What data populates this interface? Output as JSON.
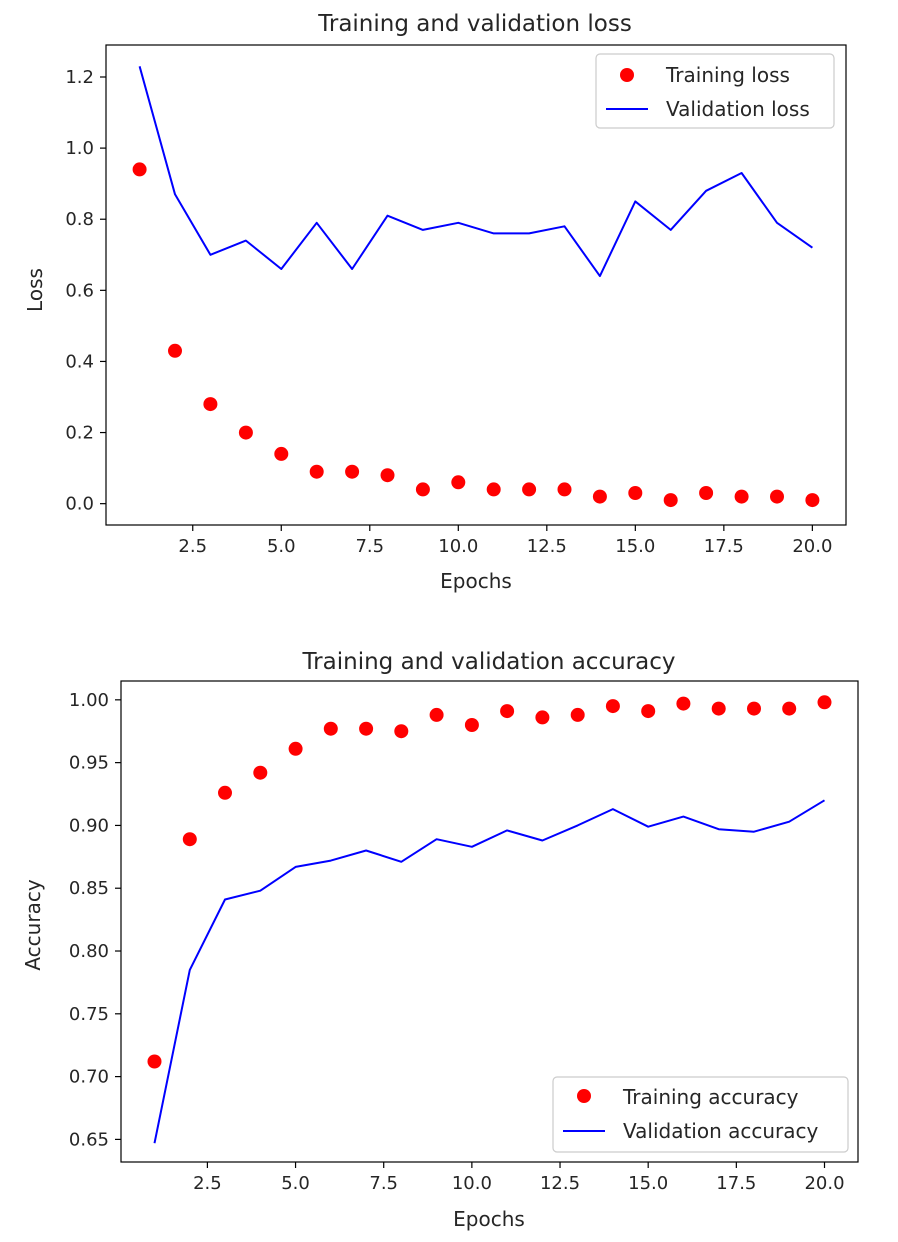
{
  "chart_data": [
    {
      "type": "line",
      "title": "Training and validation loss",
      "xlabel": "Epochs",
      "ylabel": "Loss",
      "xlim": [
        0.05,
        20.95
      ],
      "ylim": [
        -0.06,
        1.29
      ],
      "grid": false,
      "legend_position": "top-right",
      "xticks": [
        2.5,
        5.0,
        7.5,
        10.0,
        12.5,
        15.0,
        17.5,
        20.0
      ],
      "xtick_labels": [
        "2.5",
        "5.0",
        "7.5",
        "10.0",
        "12.5",
        "15.0",
        "17.5",
        "20.0"
      ],
      "yticks": [
        0.0,
        0.2,
        0.4,
        0.6,
        0.8,
        1.0,
        1.2
      ],
      "ytick_labels": [
        "0.0",
        "0.2",
        "0.4",
        "0.6",
        "0.8",
        "1.0",
        "1.2"
      ],
      "x": [
        1,
        2,
        3,
        4,
        5,
        6,
        7,
        8,
        9,
        10,
        11,
        12,
        13,
        14,
        15,
        16,
        17,
        18,
        19,
        20
      ],
      "series": [
        {
          "name": "Training loss",
          "style": "markers",
          "color": "#ff0000",
          "values": [
            0.94,
            0.43,
            0.28,
            0.2,
            0.14,
            0.09,
            0.09,
            0.08,
            0.04,
            0.06,
            0.04,
            0.04,
            0.04,
            0.02,
            0.03,
            0.01,
            0.03,
            0.02,
            0.02,
            0.01
          ]
        },
        {
          "name": "Validation loss",
          "style": "line",
          "color": "#0000ff",
          "values": [
            1.23,
            0.87,
            0.7,
            0.74,
            0.66,
            0.79,
            0.66,
            0.81,
            0.77,
            0.79,
            0.76,
            0.76,
            0.78,
            0.64,
            0.85,
            0.77,
            0.88,
            0.93,
            0.79,
            0.72
          ]
        }
      ]
    },
    {
      "type": "line",
      "title": "Training and validation accuracy",
      "xlabel": "Epochs",
      "ylabel": "Accuracy",
      "xlim": [
        0.05,
        20.95
      ],
      "ylim": [
        0.632,
        1.015
      ],
      "grid": false,
      "legend_position": "lower-right",
      "xticks": [
        2.5,
        5.0,
        7.5,
        10.0,
        12.5,
        15.0,
        17.5,
        20.0
      ],
      "xtick_labels": [
        "2.5",
        "5.0",
        "7.5",
        "10.0",
        "12.5",
        "15.0",
        "17.5",
        "20.0"
      ],
      "yticks": [
        0.65,
        0.7,
        0.75,
        0.8,
        0.85,
        0.9,
        0.95,
        1.0
      ],
      "ytick_labels": [
        "0.65",
        "0.70",
        "0.75",
        "0.80",
        "0.85",
        "0.90",
        "0.95",
        "1.00"
      ],
      "x": [
        1,
        2,
        3,
        4,
        5,
        6,
        7,
        8,
        9,
        10,
        11,
        12,
        13,
        14,
        15,
        16,
        17,
        18,
        19,
        20
      ],
      "series": [
        {
          "name": "Training accuracy",
          "style": "markers",
          "color": "#ff0000",
          "values": [
            0.712,
            0.889,
            0.926,
            0.942,
            0.961,
            0.977,
            0.977,
            0.975,
            0.988,
            0.98,
            0.991,
            0.986,
            0.988,
            0.995,
            0.991,
            0.997,
            0.993,
            0.993,
            0.993,
            0.998
          ]
        },
        {
          "name": "Validation accuracy",
          "style": "line",
          "color": "#0000ff",
          "values": [
            0.647,
            0.785,
            0.841,
            0.848,
            0.867,
            0.872,
            0.88,
            0.871,
            0.889,
            0.883,
            0.896,
            0.888,
            0.9,
            0.913,
            0.899,
            0.907,
            0.897,
            0.895,
            0.903,
            0.92
          ]
        }
      ]
    }
  ]
}
